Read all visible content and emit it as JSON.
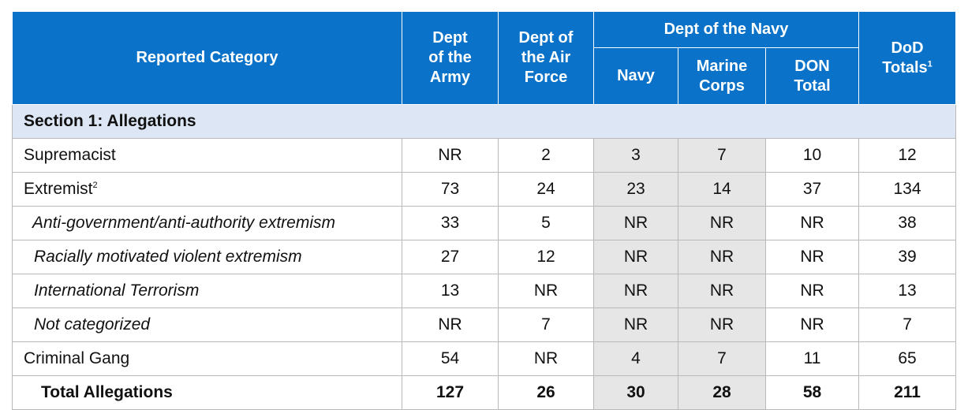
{
  "header": {
    "category": "Reported Category",
    "army": [
      "Dept",
      "of the",
      "Army"
    ],
    "airforce": [
      "Dept of",
      "the Air",
      "Force"
    ],
    "navy_group": "Dept of the Navy",
    "navy": "Navy",
    "marine": [
      "Marine",
      "Corps"
    ],
    "don": [
      "DON",
      "Total"
    ],
    "dod": [
      "DoD",
      "Totals"
    ],
    "dod_footnote": "1"
  },
  "section1": {
    "title": "Section 1:  Allegations"
  },
  "rows": [
    {
      "category": "Supremacist",
      "footnote": "",
      "style": "plain",
      "army": "NR",
      "airforce": "2",
      "navy": "3",
      "marine": "7",
      "don": "10",
      "dod": "12"
    },
    {
      "category": "Extremist",
      "footnote": "2",
      "style": "plain",
      "army": "73",
      "airforce": "24",
      "navy": "23",
      "marine": "14",
      "don": "37",
      "dod": "134"
    },
    {
      "category": "Anti-government/anti-authority extremism",
      "footnote": "",
      "style": "italic",
      "army": "33",
      "airforce": "5",
      "navy": "NR",
      "marine": "NR",
      "don": "NR",
      "dod": "38"
    },
    {
      "category": "Racially motivated violent extremism",
      "footnote": "",
      "style": "italic",
      "army": "27",
      "airforce": "12",
      "navy": "NR",
      "marine": "NR",
      "don": "NR",
      "dod": "39"
    },
    {
      "category": "International Terrorism",
      "footnote": "",
      "style": "italic",
      "army": "13",
      "airforce": "NR",
      "navy": "NR",
      "marine": "NR",
      "don": "NR",
      "dod": "13"
    },
    {
      "category": "Not categorized",
      "footnote": "",
      "style": "italic",
      "army": "NR",
      "airforce": "7",
      "navy": "NR",
      "marine": "NR",
      "don": "NR",
      "dod": "7"
    },
    {
      "category": "Criminal Gang",
      "footnote": "",
      "style": "plain",
      "army": "54",
      "airforce": "NR",
      "navy": "4",
      "marine": "7",
      "don": "11",
      "dod": "65"
    },
    {
      "category": "Total Allegations",
      "footnote": "",
      "style": "total",
      "army": "127",
      "airforce": "26",
      "navy": "30",
      "marine": "28",
      "don": "58",
      "dod": "211"
    }
  ],
  "colors": {
    "header_bg": "#0a72c8",
    "section_bg": "#dce6f4",
    "navy_shade": "#e6e6e6"
  }
}
